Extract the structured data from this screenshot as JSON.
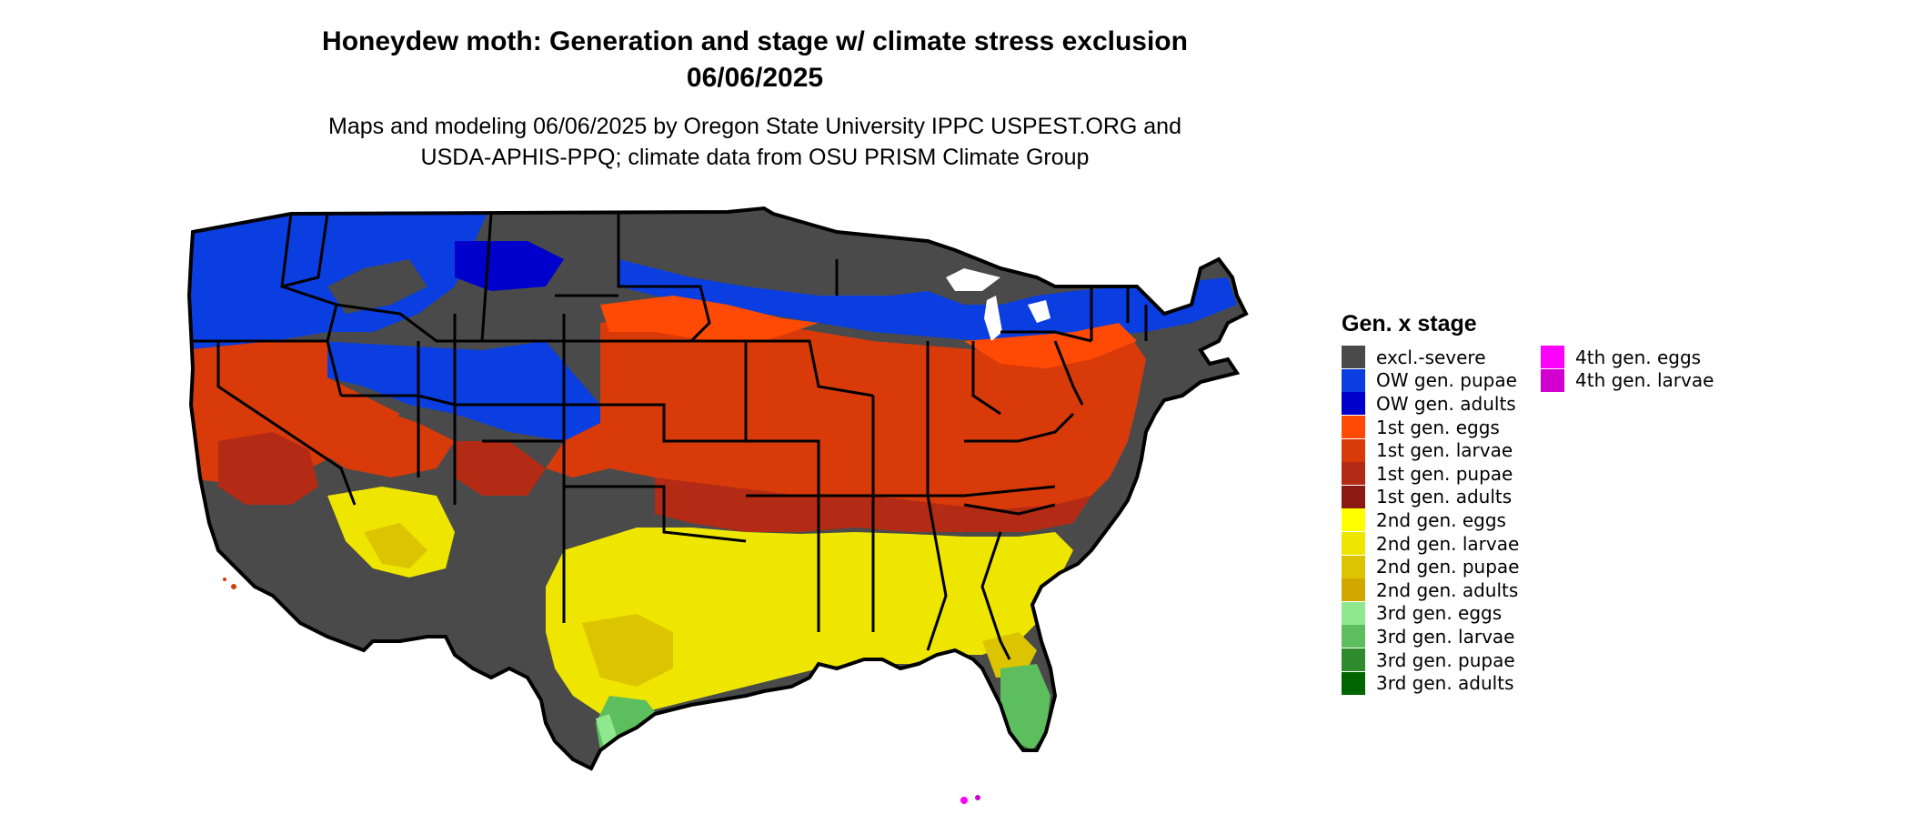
{
  "title_line1": "Honeydew moth: Generation and stage w/ climate stress exclusion",
  "title_line2": "06/06/2025",
  "subtitle_line1": "Maps and modeling 06/06/2025 by Oregon State University IPPC USPEST.ORG and",
  "subtitle_line2": "USDA-APHIS-PPQ; climate data from OSU PRISM Climate Group",
  "legend": {
    "title": "Gen. x stage",
    "items": [
      {
        "label": "excl.-severe",
        "color": "#4a4a4a"
      },
      {
        "label": "OW gen. pupae",
        "color": "#0a3ee0"
      },
      {
        "label": "OW gen. adults",
        "color": "#0000cc"
      },
      {
        "label": "1st gen. eggs",
        "color": "#ff4a05"
      },
      {
        "label": "1st gen. larvae",
        "color": "#d93a0a"
      },
      {
        "label": "1st gen. pupae",
        "color": "#b32b14"
      },
      {
        "label": "1st gen. adults",
        "color": "#8c1a14"
      },
      {
        "label": "2nd gen. eggs",
        "color": "#ffff00"
      },
      {
        "label": "2nd gen. larvae",
        "color": "#efe600"
      },
      {
        "label": "2nd gen. pupae",
        "color": "#dcc400"
      },
      {
        "label": "2nd gen. adults",
        "color": "#d2a800"
      },
      {
        "label": "3rd gen. eggs",
        "color": "#8fe88f"
      },
      {
        "label": "3rd gen. larvae",
        "color": "#5cbe5c"
      },
      {
        "label": "3rd gen. pupae",
        "color": "#2e8b2e"
      },
      {
        "label": "3rd gen. adults",
        "color": "#006400"
      },
      {
        "label": "4th gen. eggs",
        "color": "#ff00ff"
      },
      {
        "label": "4th gen. larvae",
        "color": "#d100d1"
      }
    ]
  }
}
